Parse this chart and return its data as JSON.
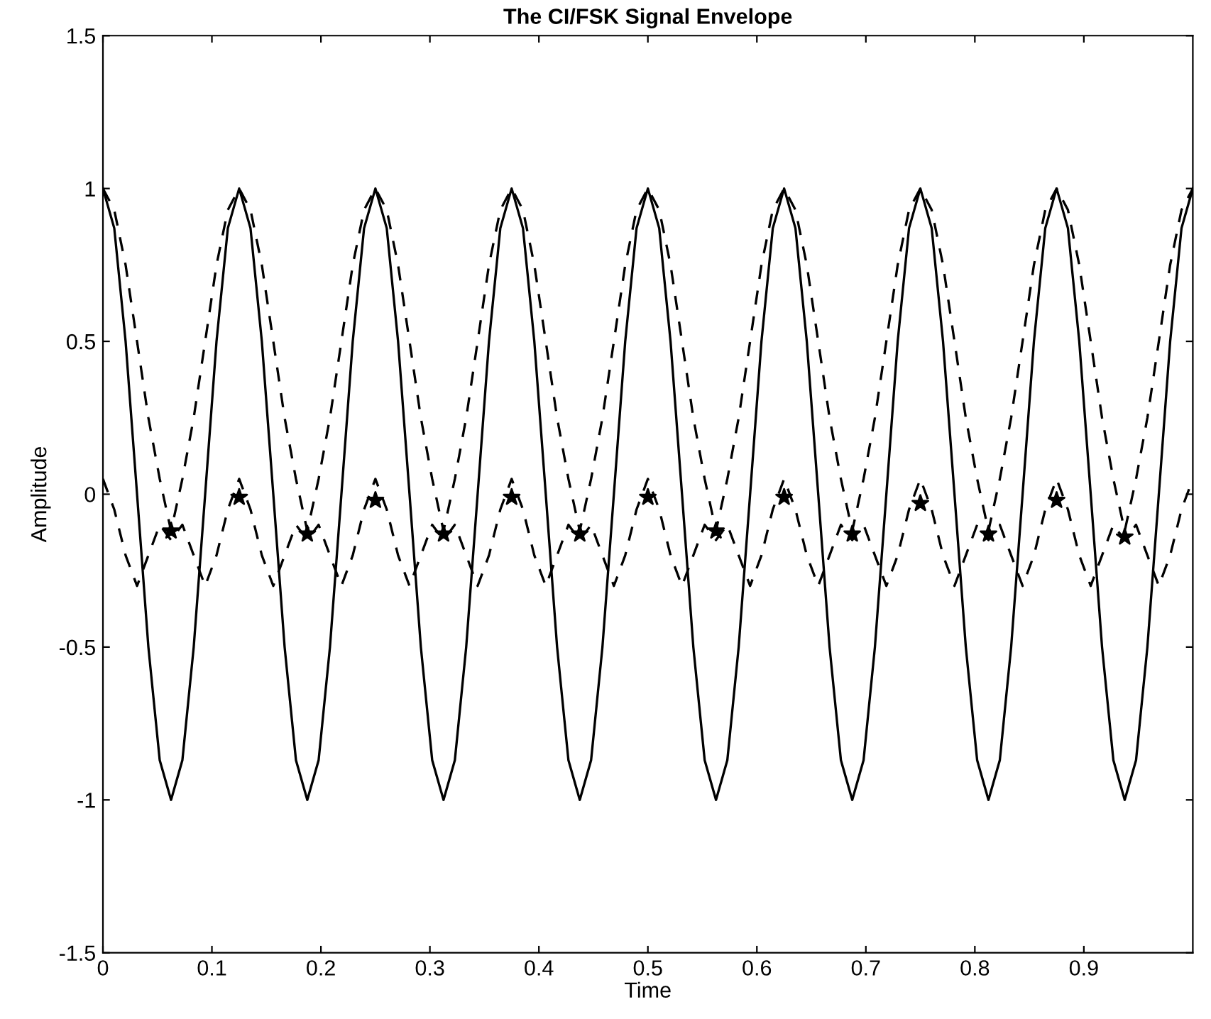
{
  "chart_data": {
    "type": "line",
    "title": "The CI/FSK Signal Envelope",
    "xlabel": "Time",
    "ylabel": "Amplitude",
    "x": [
      0,
      0.0104,
      0.0208,
      0.0313,
      0.0417,
      0.0521,
      0.0625,
      0.0729,
      0.0833,
      0.0938,
      0.1042,
      0.1146,
      0.125,
      0.1354,
      0.1458,
      0.1563,
      0.1667,
      0.1771,
      0.1875,
      0.1979,
      0.2083,
      0.2188,
      0.2292,
      0.2396,
      0.25,
      0.2604,
      0.2708,
      0.2813,
      0.2917,
      0.3021,
      0.3125,
      0.3229,
      0.3333,
      0.3438,
      0.3542,
      0.3646,
      0.375,
      0.3854,
      0.3958,
      0.4063,
      0.4167,
      0.4271,
      0.4375,
      0.4479,
      0.4583,
      0.4688,
      0.4792,
      0.4896,
      0.5,
      0.5104,
      0.5208,
      0.5313,
      0.5417,
      0.5521,
      0.5625,
      0.5729,
      0.5833,
      0.5938,
      0.6042,
      0.6146,
      0.625,
      0.6354,
      0.6458,
      0.6563,
      0.6667,
      0.6771,
      0.6875,
      0.6979,
      0.7083,
      0.7188,
      0.7292,
      0.7396,
      0.75,
      0.7604,
      0.7708,
      0.7813,
      0.7917,
      0.8021,
      0.8125,
      0.8229,
      0.8333,
      0.8438,
      0.8542,
      0.8646,
      0.875,
      0.8854,
      0.8958,
      0.9063,
      0.9167,
      0.9271,
      0.9375,
      0.9479,
      0.9583,
      0.9688,
      0.9792,
      0.9896,
      1
    ],
    "series": [
      {
        "line_style": "solid",
        "color": "#000000",
        "values": [
          1,
          0.87,
          0.5,
          0,
          -0.5,
          -0.87,
          -1,
          -0.87,
          -0.5,
          0,
          0.5,
          0.87,
          1,
          0.87,
          0.5,
          0,
          -0.5,
          -0.87,
          -1,
          -0.87,
          -0.5,
          0,
          0.5,
          0.87,
          1,
          0.87,
          0.5,
          0,
          -0.5,
          -0.87,
          -1,
          -0.87,
          -0.5,
          0,
          0.5,
          0.87,
          1,
          0.87,
          0.5,
          0,
          -0.5,
          -0.87,
          -1,
          -0.87,
          -0.5,
          0,
          0.5,
          0.87,
          1,
          0.87,
          0.5,
          0,
          -0.5,
          -0.87,
          -1,
          -0.87,
          -0.5,
          0,
          0.5,
          0.87,
          1,
          0.87,
          0.5,
          0,
          -0.5,
          -0.87,
          -1,
          -0.87,
          -0.5,
          0,
          0.5,
          0.87,
          1,
          0.87,
          0.5,
          0,
          -0.5,
          -0.87,
          -1,
          -0.87,
          -0.5,
          0,
          0.5,
          0.87,
          1,
          0.87,
          0.5,
          0,
          -0.5,
          -0.87,
          -1,
          -0.87,
          -0.5,
          0,
          0.5,
          0.87,
          1
        ]
      },
      {
        "line_style": "dashed",
        "color": "#000000",
        "values": [
          1,
          0.93,
          0.75,
          0.5,
          0.25,
          0.05,
          -0.12,
          0.05,
          0.25,
          0.5,
          0.75,
          0.93,
          1,
          0.93,
          0.75,
          0.5,
          0.25,
          0.05,
          -0.12,
          0.05,
          0.25,
          0.5,
          0.75,
          0.93,
          1,
          0.93,
          0.75,
          0.5,
          0.25,
          0.05,
          -0.12,
          0.05,
          0.25,
          0.5,
          0.75,
          0.93,
          1,
          0.93,
          0.75,
          0.5,
          0.25,
          0.05,
          -0.12,
          0.05,
          0.25,
          0.5,
          0.75,
          0.93,
          1,
          0.93,
          0.75,
          0.5,
          0.25,
          0.05,
          -0.12,
          0.05,
          0.25,
          0.5,
          0.75,
          0.93,
          1,
          0.93,
          0.75,
          0.5,
          0.25,
          0.05,
          -0.12,
          0.05,
          0.25,
          0.5,
          0.75,
          0.93,
          1,
          0.93,
          0.75,
          0.5,
          0.25,
          0.05,
          -0.12,
          0.05,
          0.25,
          0.5,
          0.75,
          0.93,
          1,
          0.93,
          0.75,
          0.5,
          0.25,
          0.05,
          -0.12,
          0.05,
          0.25,
          0.5,
          0.75,
          0.93,
          1
        ]
      },
      {
        "line_style": "dashed",
        "color": "#000000",
        "values": [
          0.05,
          -0.05,
          -0.2,
          -0.3,
          -0.2,
          -0.1,
          -0.15,
          -0.1,
          -0.2,
          -0.3,
          -0.2,
          -0.05,
          0.05,
          -0.05,
          -0.2,
          -0.3,
          -0.2,
          -0.1,
          -0.15,
          -0.1,
          -0.2,
          -0.3,
          -0.2,
          -0.05,
          0.05,
          -0.05,
          -0.2,
          -0.3,
          -0.2,
          -0.1,
          -0.15,
          -0.1,
          -0.2,
          -0.3,
          -0.2,
          -0.05,
          0.05,
          -0.05,
          -0.2,
          -0.3,
          -0.2,
          -0.1,
          -0.15,
          -0.1,
          -0.2,
          -0.3,
          -0.2,
          -0.05,
          0.05,
          -0.05,
          -0.2,
          -0.3,
          -0.2,
          -0.1,
          -0.15,
          -0.1,
          -0.2,
          -0.3,
          -0.2,
          -0.05,
          0.05,
          -0.05,
          -0.2,
          -0.3,
          -0.2,
          -0.1,
          -0.15,
          -0.1,
          -0.2,
          -0.3,
          -0.2,
          -0.05,
          0.05,
          -0.05,
          -0.2,
          -0.3,
          -0.2,
          -0.1,
          -0.15,
          -0.1,
          -0.2,
          -0.3,
          -0.2,
          -0.05,
          0.05,
          -0.05,
          -0.2,
          -0.3,
          -0.2,
          -0.1,
          -0.15,
          -0.1,
          -0.2,
          -0.3,
          -0.2,
          -0.05,
          0.05
        ]
      },
      {
        "type": "scatter",
        "marker": "star",
        "color": "#000000",
        "x": [
          0.0625,
          0.125,
          0.1875,
          0.25,
          0.3125,
          0.375,
          0.4375,
          0.5,
          0.5625,
          0.625,
          0.6875,
          0.75,
          0.8125,
          0.875,
          0.9375
        ],
        "values": [
          -0.12,
          -0.01,
          -0.13,
          -0.02,
          -0.13,
          -0.01,
          -0.13,
          -0.01,
          -0.12,
          -0.01,
          -0.13,
          -0.03,
          -0.13,
          -0.02,
          -0.14
        ]
      }
    ],
    "xlim": [
      0,
      1
    ],
    "xticks": [
      0,
      0.1,
      0.2,
      0.3,
      0.4,
      0.5,
      0.6,
      0.7,
      0.8,
      0.9
    ],
    "ylim": [
      -1.5,
      1.5
    ],
    "yticks": [
      -1.5,
      -1,
      -0.5,
      0,
      0.5,
      1,
      1.5
    ],
    "grid": false,
    "legend": false
  }
}
